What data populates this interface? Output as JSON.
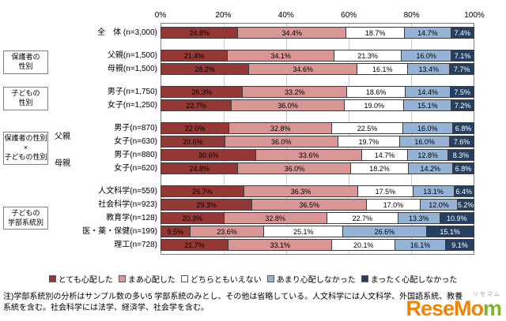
{
  "note": {
    "line1": "注)学部系統別の分析はサンプル数の多い5 学部系統のみとし、その他は省略している。人文科学には人文科学、外国語系統、教養",
    "line2": "系統を含む。社会科学には法学、経済学、社会学を含む。"
  },
  "watermark": {
    "text_orange": "ReseMo",
    "text_green": "m",
    "kana": "リセマム"
  },
  "chart_data": {
    "type": "bar",
    "stacked": true,
    "orientation": "horizontal",
    "value_unit": "%",
    "xlim": [
      0,
      100
    ],
    "x_ticks": [
      "0%",
      "20%",
      "40%",
      "60%",
      "80%",
      "100%"
    ],
    "grid": true,
    "legend_position": "bottom",
    "series_names": [
      "とても心配した",
      "まあ心配した",
      "どちらともいえない",
      "あまり心配しなかった",
      "まったく心配しなかった"
    ],
    "colors": [
      "#953735",
      "#D99694",
      "#FFFFFF",
      "#95B3D7",
      "#254061"
    ],
    "groups": [
      {
        "group_label": "",
        "group_label_lines": [],
        "rows": [
          {
            "label": "全　体 (n=3,000)",
            "values": [
              24.8,
              34.4,
              18.7,
              14.7,
              7.4
            ]
          }
        ]
      },
      {
        "group_label": "保護者の性別",
        "group_label_lines": [
          "保護者の",
          "性別"
        ],
        "rows": [
          {
            "label": "父親(n=1,500)",
            "values": [
              21.4,
              34.1,
              21.3,
              16.0,
              7.1
            ]
          },
          {
            "label": "母親(n=1,500)",
            "values": [
              28.2,
              34.6,
              16.1,
              13.4,
              7.7
            ]
          }
        ]
      },
      {
        "group_label": "子どもの性別",
        "group_label_lines": [
          "子どもの",
          "性別"
        ],
        "rows": [
          {
            "label": "男子(n=1,750)",
            "values": [
              26.3,
              33.2,
              18.6,
              14.4,
              7.5
            ]
          },
          {
            "label": "女子(n=1,250)",
            "values": [
              22.7,
              36.0,
              19.0,
              15.1,
              7.2
            ]
          }
        ]
      },
      {
        "group_label": "保護者の性別×子どもの性別",
        "group_label_lines": [
          "保護者の性別",
          "×",
          "子どもの性別"
        ],
        "sub_groups": [
          {
            "sub_label": "父親",
            "rows": [
              {
                "label": "男子(n=870)",
                "values": [
                  22.0,
                  32.8,
                  22.5,
                  16.0,
                  6.8
                ]
              },
              {
                "label": "女子(n=630)",
                "values": [
                  20.6,
                  36.0,
                  19.7,
                  16.0,
                  7.6
                ]
              }
            ]
          },
          {
            "sub_label": "母親",
            "rows": [
              {
                "label": "男子(n=880)",
                "values": [
                  30.6,
                  33.6,
                  14.7,
                  12.8,
                  8.3
                ]
              },
              {
                "label": "女子(n=620)",
                "values": [
                  24.8,
                  36.0,
                  18.2,
                  14.2,
                  6.8
                ]
              }
            ]
          }
        ]
      },
      {
        "group_label": "子どもの学部系統別",
        "group_label_lines": [
          "子どもの",
          "学部系統別"
        ],
        "rows": [
          {
            "label": "人文科学(n=559)",
            "values": [
              26.7,
              36.3,
              17.5,
              13.1,
              6.4
            ]
          },
          {
            "label": "社会科学(n=923)",
            "values": [
              29.3,
              36.5,
              17.0,
              12.0,
              5.2
            ]
          },
          {
            "label": "教育学(n=128)",
            "values": [
              20.3,
              32.8,
              22.7,
              13.3,
              10.9
            ]
          },
          {
            "label": "医・薬・保健(n=199)",
            "values": [
              9.5,
              23.6,
              25.1,
              26.6,
              15.1
            ]
          },
          {
            "label": "理工(n=728)",
            "values": [
              21.7,
              33.1,
              20.1,
              16.1,
              9.1
            ]
          }
        ]
      }
    ]
  }
}
